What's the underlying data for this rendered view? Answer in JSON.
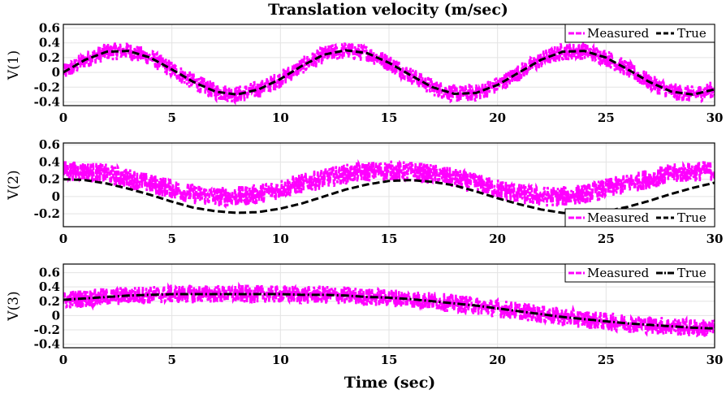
{
  "chart_data": {
    "type": "line",
    "title": "Translation velocity (m/sec)",
    "xlabel": "Time (sec)",
    "xlim": [
      0,
      30
    ],
    "x_ticks": [
      0,
      5,
      10,
      15,
      20,
      25,
      30
    ],
    "grid": true,
    "series_style": {
      "Measured": {
        "color": "#ff00ff",
        "style": "dashed, noisy"
      },
      "True": {
        "color": "#000000",
        "style": "dash-dot"
      }
    },
    "subplots": [
      {
        "ylabel": "V(1)",
        "ylim": [
          -0.45,
          0.65
        ],
        "y_ticks": [
          -0.4,
          -0.2,
          0,
          0.2,
          0.4,
          0.6
        ],
        "legend": "top-right",
        "series": [
          {
            "name": "Measured",
            "color": "#ff00ff",
            "noise_amplitude": 0.12,
            "x": [
              0,
              1,
              2,
              3,
              4,
              5,
              6,
              7,
              8,
              9,
              10,
              11,
              12,
              13,
              14,
              15,
              16,
              17,
              18,
              19,
              20,
              21,
              22,
              23,
              24,
              25,
              26,
              27,
              28,
              29,
              30
            ],
            "values": [
              0.0,
              0.17,
              0.28,
              0.29,
              0.2,
              0.04,
              -0.13,
              -0.26,
              -0.3,
              -0.23,
              -0.09,
              0.09,
              0.24,
              0.3,
              0.26,
              0.13,
              -0.04,
              -0.2,
              -0.29,
              -0.28,
              -0.17,
              0.0,
              0.17,
              0.28,
              0.29,
              0.2,
              0.04,
              -0.13,
              -0.26,
              -0.3,
              -0.23
            ]
          },
          {
            "name": "True",
            "color": "#000000",
            "x": [
              0,
              1,
              2,
              3,
              4,
              5,
              6,
              7,
              8,
              9,
              10,
              11,
              12,
              13,
              14,
              15,
              16,
              17,
              18,
              19,
              20,
              21,
              22,
              23,
              24,
              25,
              26,
              27,
              28,
              29,
              30
            ],
            "values": [
              0.0,
              0.17,
              0.28,
              0.29,
              0.2,
              0.04,
              -0.13,
              -0.26,
              -0.3,
              -0.23,
              -0.09,
              0.09,
              0.24,
              0.3,
              0.26,
              0.13,
              -0.04,
              -0.2,
              -0.29,
              -0.28,
              -0.17,
              0.0,
              0.17,
              0.28,
              0.29,
              0.2,
              0.04,
              -0.13,
              -0.26,
              -0.3,
              -0.23
            ]
          }
        ]
      },
      {
        "ylabel": "V(2)",
        "ylim": [
          -0.35,
          0.62
        ],
        "y_ticks": [
          -0.2,
          0,
          0.2,
          0.4,
          0.6
        ],
        "legend": "bottom-right",
        "series": [
          {
            "name": "Measured",
            "color": "#ff00ff",
            "noise_amplitude": 0.12,
            "x": [
              0,
              1,
              2,
              3,
              4,
              5,
              6,
              7,
              8,
              9,
              10,
              11,
              12,
              13,
              14,
              15,
              16,
              17,
              18,
              19,
              20,
              21,
              22,
              23,
              24,
              25,
              26,
              27,
              28,
              29,
              30
            ],
            "values": [
              0.3,
              0.29,
              0.26,
              0.21,
              0.15,
              0.09,
              0.03,
              0.0,
              0.0,
              0.03,
              0.09,
              0.15,
              0.21,
              0.26,
              0.29,
              0.3,
              0.29,
              0.26,
              0.21,
              0.15,
              0.09,
              0.03,
              0.0,
              0.0,
              0.03,
              0.09,
              0.15,
              0.21,
              0.26,
              0.29,
              0.3
            ]
          },
          {
            "name": "True",
            "color": "#000000",
            "x": [
              0,
              1,
              2,
              3,
              4,
              5,
              6,
              7,
              8,
              9,
              10,
              11,
              12,
              13,
              14,
              15,
              16,
              17,
              18,
              19,
              20,
              21,
              22,
              23,
              24,
              25,
              26,
              27,
              28,
              29,
              30
            ],
            "values": [
              0.2,
              0.19,
              0.15,
              0.09,
              0.02,
              -0.06,
              -0.13,
              -0.17,
              -0.19,
              -0.18,
              -0.14,
              -0.08,
              0.0,
              0.08,
              0.14,
              0.18,
              0.19,
              0.17,
              0.13,
              0.06,
              -0.02,
              -0.09,
              -0.15,
              -0.19,
              -0.2,
              -0.17,
              -0.12,
              -0.05,
              0.03,
              0.1,
              0.16
            ]
          }
        ]
      },
      {
        "ylabel": "V(3)",
        "ylim": [
          -0.45,
          0.72
        ],
        "y_ticks": [
          -0.4,
          -0.2,
          0,
          0.2,
          0.4,
          0.6
        ],
        "legend": "top-right",
        "series": [
          {
            "name": "Measured",
            "color": "#ff00ff",
            "noise_amplitude": 0.13,
            "x": [
              0,
              1,
              2,
              3,
              4,
              5,
              6,
              7,
              8,
              9,
              10,
              11,
              12,
              13,
              14,
              15,
              16,
              17,
              18,
              19,
              20,
              21,
              22,
              23,
              24,
              25,
              26,
              27,
              28,
              29,
              30
            ],
            "values": [
              0.22,
              0.24,
              0.26,
              0.28,
              0.29,
              0.3,
              0.3,
              0.3,
              0.3,
              0.3,
              0.3,
              0.29,
              0.29,
              0.28,
              0.26,
              0.25,
              0.23,
              0.2,
              0.17,
              0.14,
              0.1,
              0.06,
              0.02,
              -0.02,
              -0.05,
              -0.08,
              -0.11,
              -0.13,
              -0.15,
              -0.17,
              -0.18
            ]
          },
          {
            "name": "True",
            "color": "#000000",
            "x": [
              0,
              1,
              2,
              3,
              4,
              5,
              6,
              7,
              8,
              9,
              10,
              11,
              12,
              13,
              14,
              15,
              16,
              17,
              18,
              19,
              20,
              21,
              22,
              23,
              24,
              25,
              26,
              27,
              28,
              29,
              30
            ],
            "values": [
              0.22,
              0.24,
              0.26,
              0.28,
              0.29,
              0.3,
              0.3,
              0.3,
              0.3,
              0.3,
              0.3,
              0.29,
              0.29,
              0.28,
              0.26,
              0.25,
              0.23,
              0.2,
              0.17,
              0.14,
              0.1,
              0.06,
              0.02,
              -0.02,
              -0.05,
              -0.08,
              -0.11,
              -0.13,
              -0.15,
              -0.17,
              -0.18
            ]
          }
        ]
      }
    ]
  }
}
